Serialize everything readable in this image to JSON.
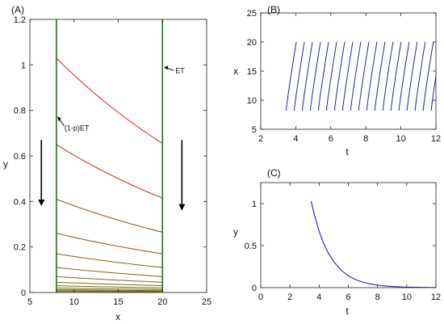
{
  "chart_data": [
    {
      "panel": "(A)",
      "type": "line",
      "xlabel": "x",
      "ylabel": "y",
      "xlim": [
        5,
        25
      ],
      "ylim": [
        0,
        1.2
      ],
      "xticks": [
        5,
        10,
        15,
        20,
        25
      ],
      "yticks": [
        0,
        0.2,
        0.4,
        0.6,
        0.8,
        1,
        1.2
      ],
      "xtick_labels": [
        "5",
        "10",
        "15",
        "20",
        "25"
      ],
      "ytick_labels": [
        "0",
        "0.2",
        "0.4",
        "0.6",
        "0.8",
        "1",
        "1.2"
      ],
      "boundaries": {
        "x": [
          8,
          20
        ],
        "color": "#1a7a1a"
      },
      "curves": {
        "x_range": [
          8,
          20
        ],
        "start_values": [
          1.03,
          0.65,
          0.41,
          0.26,
          0.17,
          0.11,
          0.07,
          0.045,
          0.03,
          0.02,
          0.013,
          0.008,
          0.005
        ],
        "end_values": [
          0.655,
          0.415,
          0.265,
          0.17,
          0.11,
          0.07,
          0.045,
          0.03,
          0.02,
          0.013,
          0.008,
          0.005,
          0.003
        ],
        "colors": [
          "#e0201a",
          "#c8261c",
          "#9b4a14",
          "#8a5a12",
          "#876412",
          "#7f6a13",
          "#7a6a14",
          "#786c14",
          "#766c15",
          "#746e15",
          "#726e15",
          "#706e16",
          "#6e6e16"
        ]
      },
      "annotations": [
        {
          "text": "ET",
          "arrow_to": [
            20,
            1.0
          ]
        },
        {
          "text": "(1-p)ET",
          "arrow_to": [
            8,
            0.78
          ]
        }
      ],
      "down_arrows": [
        {
          "x": 6.3,
          "y_from": 0.67,
          "y_to": 0.38
        },
        {
          "x": 22.2,
          "y_from": 0.67,
          "y_to": 0.36
        }
      ],
      "base_band_color": "#f3c8ef"
    },
    {
      "panel": "(B)",
      "type": "line",
      "xlabel": "t",
      "ylabel": "x",
      "xlim": [
        2,
        12
      ],
      "ylim": [
        5,
        25
      ],
      "xticks": [
        2,
        4,
        6,
        8,
        10,
        12
      ],
      "yticks": [
        5,
        10,
        15,
        20,
        25
      ],
      "xtick_labels": [
        "2",
        "4",
        "6",
        "8",
        "10",
        "12"
      ],
      "ytick_labels": [
        "5",
        "10",
        "15",
        "20",
        "25"
      ],
      "color": "#2020c0",
      "segments": {
        "t_start": [
          3.45,
          3.91,
          4.37,
          4.83,
          5.29,
          5.75,
          6.21,
          6.67,
          7.13,
          7.59,
          8.05,
          8.51,
          8.97,
          9.43,
          9.89,
          10.35,
          10.81,
          11.27,
          11.73
        ],
        "duration": 0.58,
        "x_start": 8.2,
        "x_end": 20
      }
    },
    {
      "panel": "(C)",
      "type": "line",
      "xlabel": "t",
      "ylabel": "y",
      "xlim": [
        0,
        12
      ],
      "ylim": [
        0,
        1.25
      ],
      "xticks": [
        0,
        2,
        4,
        6,
        8,
        10,
        12
      ],
      "yticks": [
        0,
        0.5,
        1
      ],
      "xtick_labels": [
        "0",
        "2",
        "4",
        "6",
        "8",
        "10",
        "12"
      ],
      "ytick_labels": [
        "0",
        "0.5",
        "1"
      ],
      "color": "#2020c0",
      "x": [
        3.45,
        3.7,
        4.0,
        4.3,
        4.6,
        5.0,
        5.5,
        6.0,
        6.5,
        7.0,
        7.5,
        8.0,
        8.5,
        9.0,
        9.5,
        10.0,
        11.0,
        12.0
      ],
      "y": [
        1.03,
        0.85,
        0.67,
        0.53,
        0.42,
        0.31,
        0.21,
        0.14,
        0.095,
        0.065,
        0.044,
        0.03,
        0.02,
        0.014,
        0.009,
        0.006,
        0.003,
        0.001
      ]
    }
  ]
}
